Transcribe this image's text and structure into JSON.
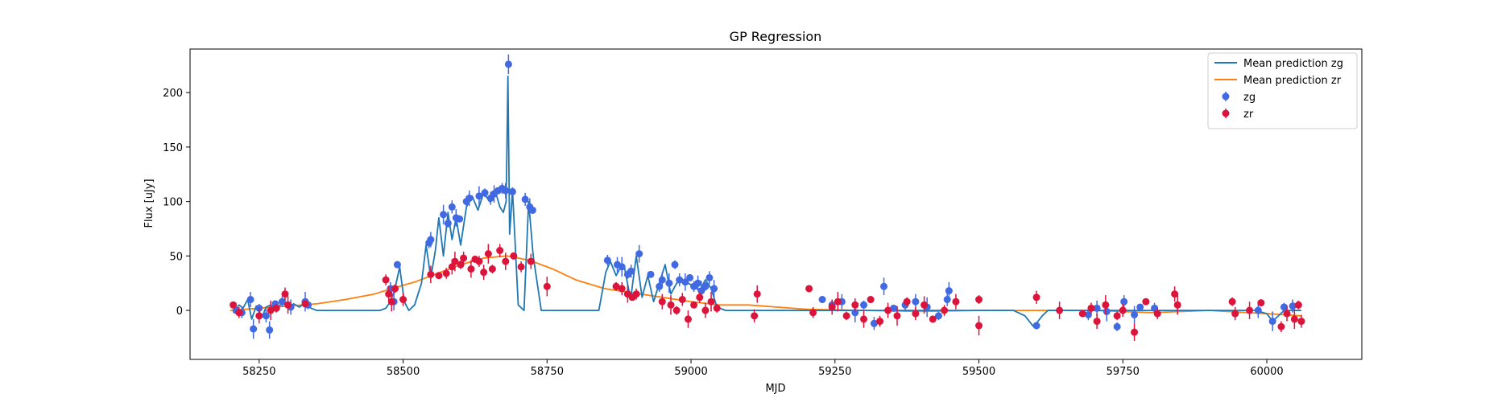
{
  "chart_data": {
    "type": "scatter",
    "title": "GP Regression",
    "xlabel": "MJD",
    "ylabel": "Flux [uJy]",
    "xlim": [
      58130,
      60165
    ],
    "ylim": [
      -45,
      240
    ],
    "xticks": [
      58250,
      58500,
      58750,
      59000,
      59250,
      59500,
      59750,
      60000
    ],
    "yticks": [
      0,
      50,
      100,
      150,
      200
    ],
    "grid": false,
    "legend_position": "top-right",
    "legend": {
      "items": [
        {
          "label": "Mean prediction zg",
          "kind": "line",
          "color": "#1f77b4"
        },
        {
          "label": "Mean prediction zr",
          "kind": "line",
          "color": "#ff7f0e"
        },
        {
          "label": "zg",
          "kind": "marker",
          "color": "#4169e1"
        },
        {
          "label": "zr",
          "kind": "marker",
          "color": "#dc143c"
        }
      ]
    },
    "series": [
      {
        "name": "Mean prediction zg",
        "kind": "line",
        "color": "#1f77b4",
        "x": [
          58205,
          58215,
          58222,
          58230,
          58237,
          58245,
          58255,
          58262,
          58270,
          58280,
          58290,
          58300,
          58310,
          58320,
          58332,
          58340,
          58350,
          58400,
          58460,
          58470,
          58478,
          58486,
          58494,
          58502,
          58510,
          58520,
          58532,
          58540,
          58548,
          58556,
          58562,
          58570,
          58578,
          58585,
          58592,
          58600,
          58610,
          58620,
          58630,
          58640,
          58650,
          58660,
          58668,
          58674,
          58679,
          58682,
          58685,
          58690,
          58700,
          58710,
          58718,
          58726,
          58740,
          58760,
          58790,
          58820,
          58840,
          58852,
          58860,
          58870,
          58878,
          58885,
          58895,
          58905,
          58915,
          58925,
          58935,
          58945,
          58955,
          58965,
          58975,
          58985,
          58995,
          59005,
          59015,
          59025,
          59035,
          59045,
          59060,
          59100,
          59200,
          59300,
          59400,
          59500,
          59560,
          59580,
          59595,
          59610,
          59620,
          59640,
          59700,
          59740,
          59760,
          59800,
          59850,
          59900,
          59950,
          59980,
          60000,
          60010,
          60030,
          60060
        ],
        "y": [
          -2,
          5,
          2,
          10,
          -8,
          4,
          -6,
          3,
          5,
          -1,
          8,
          2,
          6,
          3,
          8,
          2,
          0,
          0,
          0,
          2,
          8,
          20,
          40,
          8,
          0,
          5,
          25,
          60,
          30,
          55,
          85,
          50,
          90,
          65,
          85,
          60,
          95,
          105,
          92,
          108,
          100,
          110,
          95,
          90,
          100,
          215,
          70,
          110,
          5,
          0,
          100,
          50,
          0,
          0,
          0,
          0,
          0,
          35,
          45,
          32,
          40,
          38,
          10,
          50,
          12,
          32,
          8,
          25,
          42,
          15,
          25,
          28,
          25,
          22,
          18,
          28,
          20,
          3,
          0,
          0,
          0,
          0,
          0,
          0,
          0,
          -5,
          -15,
          -5,
          0,
          0,
          0,
          0,
          0,
          0,
          0,
          0,
          0,
          0,
          -3,
          -10,
          0,
          0
        ]
      },
      {
        "name": "Mean prediction zr",
        "kind": "line",
        "color": "#ff7f0e",
        "x": [
          58200,
          58250,
          58300,
          58350,
          58400,
          58450,
          58480,
          58520,
          58560,
          58600,
          58640,
          58680,
          58720,
          58760,
          58800,
          58850,
          58900,
          58950,
          59000,
          59050,
          59100,
          59150,
          59200,
          59300,
          59400,
          59500,
          59600,
          59700,
          59800,
          59900,
          60000,
          60060
        ],
        "y": [
          0,
          2,
          4,
          6,
          10,
          15,
          20,
          26,
          34,
          42,
          48,
          50,
          46,
          38,
          28,
          20,
          16,
          12,
          8,
          5,
          5,
          3,
          1,
          0,
          -1,
          0,
          0,
          0,
          -2,
          0,
          -3,
          -5
        ]
      },
      {
        "name": "zg",
        "kind": "points",
        "color": "#4169e1",
        "x": [
          58210,
          58220,
          58235,
          58240,
          58250,
          58262,
          58268,
          58278,
          58290,
          58305,
          58330,
          58335,
          58478,
          58484,
          58490,
          58545,
          58548,
          58570,
          58578,
          58585,
          58592,
          58598,
          58610,
          58615,
          58632,
          58642,
          58652,
          58658,
          58665,
          58672,
          58678,
          58683,
          58690,
          58712,
          58720,
          58725,
          58855,
          58872,
          58880,
          58890,
          58896,
          58910,
          58930,
          58945,
          58950,
          58962,
          58972,
          58980,
          58990,
          58998,
          59005,
          59012,
          59018,
          59025,
          59032,
          59040,
          59228,
          59245,
          59262,
          59285,
          59300,
          59318,
          59335,
          59352,
          59372,
          59390,
          59410,
          59430,
          59445,
          59448,
          59600,
          59690,
          59705,
          59722,
          59740,
          59752,
          59770,
          59780,
          59805,
          59985,
          60010,
          60030,
          60045
        ],
        "y": [
          0,
          -2,
          10,
          -17,
          2,
          -5,
          -18,
          6,
          8,
          3,
          8,
          5,
          20,
          8,
          42,
          62,
          65,
          88,
          80,
          95,
          85,
          84,
          100,
          103,
          105,
          108,
          103,
          107,
          110,
          112,
          110,
          226,
          109,
          102,
          95,
          92,
          46,
          42,
          40,
          33,
          36,
          52,
          33,
          22,
          28,
          25,
          42,
          28,
          26,
          30,
          22,
          25,
          18,
          22,
          30,
          20,
          10,
          5,
          8,
          -2,
          5,
          -12,
          22,
          2,
          5,
          8,
          3,
          -5,
          10,
          18,
          -14,
          -4,
          2,
          -1,
          -15,
          8,
          -4,
          3,
          2,
          0,
          -10,
          3,
          4
        ]
      },
      {
        "name": "zr",
        "kind": "points",
        "color": "#dc143c",
        "x": [
          58205,
          58215,
          58250,
          58270,
          58280,
          58295,
          58300,
          58330,
          58470,
          58475,
          58480,
          58486,
          58500,
          58548,
          58562,
          58575,
          58585,
          58590,
          58600,
          58605,
          58618,
          58625,
          58632,
          58640,
          58648,
          58655,
          58668,
          58678,
          58692,
          58705,
          58722,
          58750,
          58870,
          58880,
          58890,
          58898,
          58905,
          58950,
          58965,
          58975,
          58985,
          58995,
          59005,
          59015,
          59025,
          59035,
          59045,
          59110,
          59115,
          59205,
          59212,
          59245,
          59255,
          59270,
          59285,
          59300,
          59312,
          59328,
          59342,
          59358,
          59375,
          59390,
          59405,
          59420,
          59440,
          59460,
          59500,
          59500,
          59600,
          59640,
          59680,
          59695,
          59705,
          59720,
          59740,
          59750,
          59770,
          59790,
          59810,
          59840,
          59845,
          59940,
          59945,
          59970,
          59990,
          60025,
          60035,
          60048,
          60055,
          60060
        ],
        "y": [
          5,
          -2,
          -5,
          0,
          2,
          15,
          5,
          6,
          28,
          15,
          8,
          20,
          10,
          33,
          32,
          34,
          40,
          45,
          42,
          48,
          38,
          47,
          45,
          35,
          52,
          38,
          55,
          45,
          50,
          40,
          45,
          22,
          22,
          20,
          15,
          12,
          15,
          8,
          5,
          0,
          10,
          -8,
          5,
          12,
          0,
          8,
          2,
          -5,
          15,
          20,
          -2,
          3,
          8,
          -5,
          5,
          -8,
          10,
          -10,
          0,
          -5,
          8,
          -3,
          5,
          -8,
          0,
          8,
          -14,
          10,
          12,
          0,
          -3,
          2,
          -10,
          5,
          -5,
          0,
          -20,
          8,
          -3,
          15,
          5,
          8,
          -3,
          0,
          7,
          -15,
          -3,
          -8,
          5,
          -10
        ]
      }
    ]
  }
}
